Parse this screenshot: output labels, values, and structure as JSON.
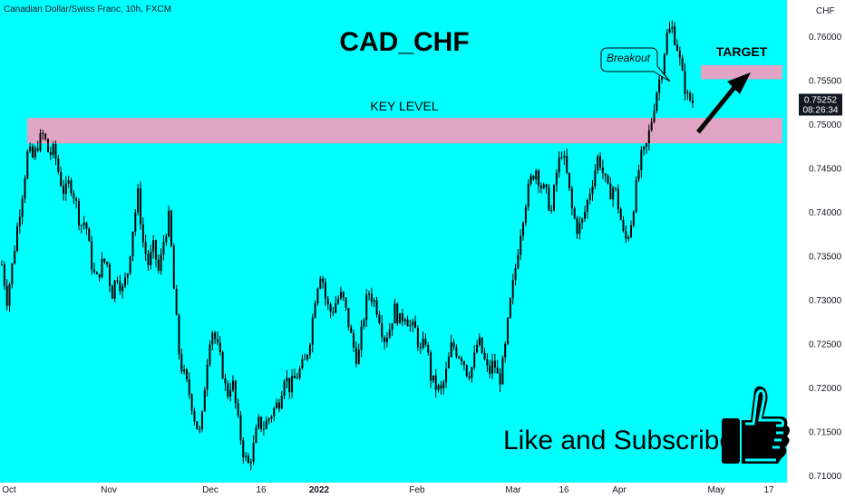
{
  "header": {
    "symbol_info": "Canadian Dollar/Swiss Franc, 10h, FXCM",
    "currency": "CHF"
  },
  "annotations": {
    "title": "CAD_CHF",
    "key_level": "KEY LEVEL",
    "target": "TARGET",
    "breakout": "Breakout",
    "cta": "Like and Subscribe"
  },
  "price_tag": {
    "price": "0.75252",
    "countdown": "08:26:34"
  },
  "colors": {
    "background": "#00ffff",
    "zone": "#e0a4c4",
    "candle": "#000000",
    "price_tag": "#131722"
  },
  "icons": [
    "thumbs-up-icon",
    "arrow-up-right-icon"
  ],
  "chart_data": {
    "type": "candlestick",
    "title": "CAD_CHF",
    "ylabel": "CHF",
    "ylim": [
      0.71,
      0.762
    ],
    "y_ticks": [
      "0.76000",
      "0.75500",
      "0.75000",
      "0.74500",
      "0.74000",
      "0.73500",
      "0.73000",
      "0.72500",
      "0.72000",
      "0.71500",
      "0.71000"
    ],
    "x_ticks": [
      "Oct",
      "Nov",
      "Dec",
      "16",
      "2022",
      "Feb",
      "Mar",
      "16",
      "Apr",
      "May",
      "17"
    ],
    "zones": [
      {
        "label": "KEY LEVEL",
        "from": 0.7478,
        "to": 0.7507
      },
      {
        "label": "TARGET",
        "from": 0.7551,
        "to": 0.7567
      }
    ],
    "last_price": 0.75252,
    "path": [
      [
        0.734,
        "Oct"
      ],
      [
        0.73,
        ""
      ],
      [
        0.734,
        ""
      ],
      [
        0.7385,
        ""
      ],
      [
        0.7425,
        ""
      ],
      [
        0.747,
        ""
      ],
      [
        0.746,
        ""
      ],
      [
        0.748,
        ""
      ],
      [
        0.7488,
        ""
      ],
      [
        0.7465,
        ""
      ],
      [
        0.747,
        ""
      ],
      [
        0.744,
        ""
      ],
      [
        0.742,
        ""
      ],
      [
        0.7435,
        ""
      ],
      [
        0.7415,
        ""
      ],
      [
        0.7385,
        ""
      ],
      [
        0.739,
        "Nov"
      ],
      [
        0.7345,
        ""
      ],
      [
        0.732,
        ""
      ],
      [
        0.734,
        ""
      ],
      [
        0.7345,
        ""
      ],
      [
        0.7305,
        ""
      ],
      [
        0.733,
        ""
      ],
      [
        0.731,
        ""
      ],
      [
        0.733,
        ""
      ],
      [
        0.738,
        ""
      ],
      [
        0.742,
        ""
      ],
      [
        0.7365,
        ""
      ],
      [
        0.734,
        ""
      ],
      [
        0.736,
        ""
      ],
      [
        0.733,
        ""
      ],
      [
        0.737,
        ""
      ],
      [
        0.7395,
        ""
      ],
      [
        0.73,
        "Dec"
      ],
      [
        0.723,
        ""
      ],
      [
        0.721,
        ""
      ],
      [
        0.719,
        ""
      ],
      [
        0.716,
        ""
      ],
      [
        0.7145,
        ""
      ],
      [
        0.722,
        ""
      ],
      [
        0.727,
        ""
      ],
      [
        0.725,
        ""
      ],
      [
        0.7225,
        ""
      ],
      [
        0.719,
        ""
      ],
      [
        0.721,
        ""
      ],
      [
        0.7165,
        ""
      ],
      [
        0.713,
        ""
      ],
      [
        0.711,
        ""
      ],
      [
        0.713,
        ""
      ],
      [
        0.716,
        ""
      ],
      [
        0.7155,
        ""
      ],
      [
        0.7165,
        ""
      ],
      [
        0.7175,
        ""
      ],
      [
        0.7185,
        ""
      ],
      [
        0.7215,
        ""
      ],
      [
        0.72,
        ""
      ],
      [
        0.721,
        ""
      ],
      [
        0.722,
        ""
      ],
      [
        0.723,
        ""
      ],
      [
        0.726,
        ""
      ],
      [
        0.731,
        ""
      ],
      [
        0.7335,
        ""
      ],
      [
        0.7295,
        ""
      ],
      [
        0.7285,
        ""
      ],
      [
        0.73,
        ""
      ],
      [
        0.7305,
        ""
      ],
      [
        0.728,
        ""
      ],
      [
        0.725,
        ""
      ],
      [
        0.723,
        ""
      ],
      [
        0.7275,
        ""
      ],
      [
        0.731,
        ""
      ],
      [
        0.73,
        ""
      ],
      [
        0.7285,
        ""
      ],
      [
        0.7255,
        ""
      ],
      [
        0.7265,
        ""
      ],
      [
        0.729,
        ""
      ],
      [
        0.7275,
        ""
      ],
      [
        0.7285,
        ""
      ],
      [
        0.727,
        ""
      ],
      [
        0.7265,
        ""
      ],
      [
        0.724,
        ""
      ],
      [
        0.7255,
        ""
      ],
      [
        0.721,
        ""
      ],
      [
        0.72,
        ""
      ],
      [
        0.7195,
        ""
      ],
      [
        0.722,
        ""
      ],
      [
        0.725,
        ""
      ],
      [
        0.724,
        ""
      ],
      [
        0.7235,
        ""
      ],
      [
        0.7215,
        ""
      ],
      [
        0.7225,
        ""
      ],
      [
        0.7255,
        ""
      ],
      [
        0.7235,
        ""
      ],
      [
        0.7215,
        ""
      ],
      [
        0.723,
        ""
      ],
      [
        0.7205,
        ""
      ],
      [
        0.7235,
        ""
      ],
      [
        0.729,
        ""
      ],
      [
        0.733,
        ""
      ],
      [
        0.7375,
        ""
      ],
      [
        0.741,
        ""
      ],
      [
        0.7435,
        ""
      ],
      [
        0.745,
        ""
      ],
      [
        0.743,
        ""
      ],
      [
        0.742,
        ""
      ],
      [
        0.74,
        ""
      ],
      [
        0.7445,
        ""
      ],
      [
        0.747,
        ""
      ],
      [
        0.744,
        ""
      ],
      [
        0.74,
        ""
      ],
      [
        0.738,
        ""
      ],
      [
        0.739,
        ""
      ],
      [
        0.7415,
        ""
      ],
      [
        0.744,
        ""
      ],
      [
        0.7465,
        ""
      ],
      [
        0.744,
        ""
      ],
      [
        0.742,
        ""
      ],
      [
        0.743,
        ""
      ],
      [
        0.74,
        ""
      ],
      [
        0.7365,
        ""
      ],
      [
        0.738,
        ""
      ],
      [
        0.742,
        ""
      ],
      [
        0.746,
        ""
      ],
      [
        0.747,
        ""
      ],
      [
        0.75,
        ""
      ],
      [
        0.7535,
        ""
      ],
      [
        0.756,
        ""
      ],
      [
        0.76,
        ""
      ],
      [
        0.761,
        ""
      ],
      [
        0.759,
        ""
      ],
      [
        0.7555,
        ""
      ],
      [
        0.753,
        ""
      ],
      [
        0.75252,
        ""
      ]
    ]
  }
}
